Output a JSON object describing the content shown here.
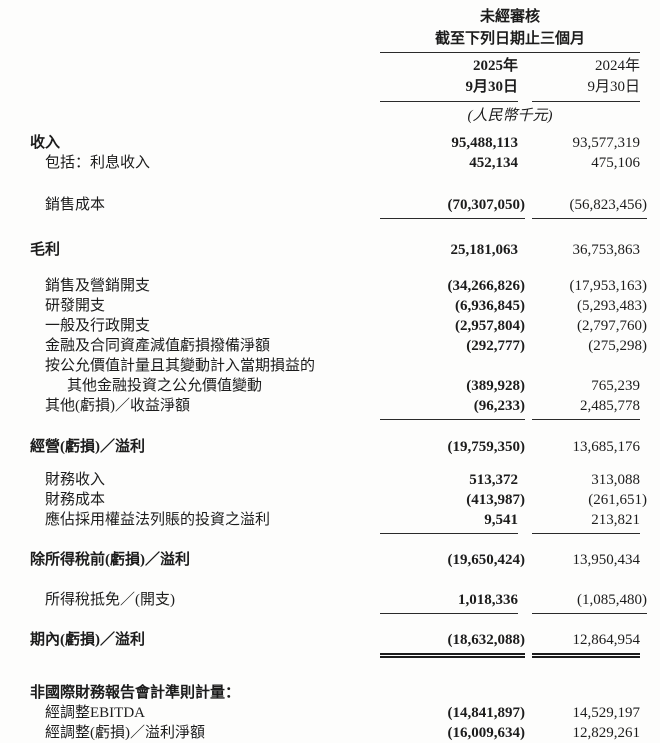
{
  "header": {
    "unaudited": "未經審核",
    "period_title": "截至下列日期止三個月",
    "col_2025": {
      "year": "2025年",
      "date": "9月30日"
    },
    "col_2024": {
      "year": "2024年",
      "date": "9月30日"
    },
    "currency_note": "(人民幣千元)"
  },
  "columns": [
    "2025年9月30日",
    "2024年9月30日"
  ],
  "rows": [
    {
      "label": "收入",
      "v2025": "95,488,113",
      "v2024": "93,577,319",
      "emphasis": true,
      "indent": 0,
      "rule": "none",
      "spacing": 6
    },
    {
      "label": "包括：利息收入",
      "v2025": "452,134",
      "v2024": "475,106",
      "emphasis": false,
      "indent": 1,
      "rule": "none",
      "spacing": 0
    },
    {
      "label": "銷售成本",
      "v2025": "(70,307,050)",
      "v2024": "(56,823,456)",
      "emphasis": false,
      "indent": 1,
      "rule": "single",
      "spacing": 22
    },
    {
      "label": "毛利",
      "v2025": "25,181,063",
      "v2024": "36,753,863",
      "emphasis": true,
      "indent": 0,
      "rule": "none",
      "spacing": 21
    },
    {
      "label": "銷售及營銷開支",
      "v2025": "(34,266,826)",
      "v2024": "(17,953,163)",
      "emphasis": false,
      "indent": 1,
      "rule": "none",
      "spacing": 16
    },
    {
      "label": "研發開支",
      "v2025": "(6,936,845)",
      "v2024": "(5,293,483)",
      "emphasis": false,
      "indent": 1,
      "rule": "none",
      "spacing": 0
    },
    {
      "label": "一般及行政開支",
      "v2025": "(2,957,804)",
      "v2024": "(2,797,760)",
      "emphasis": false,
      "indent": 1,
      "rule": "none",
      "spacing": 0
    },
    {
      "label": "金融及合同資產減值虧損撥備淨額",
      "v2025": "(292,777)",
      "v2024": "(275,298)",
      "emphasis": false,
      "indent": 1,
      "rule": "none",
      "spacing": 0
    },
    {
      "label": "按公允價值計量且其變動計入當期損益的",
      "v2025": "",
      "v2024": "",
      "emphasis": false,
      "indent": 1,
      "rule": "none",
      "spacing": 0
    },
    {
      "label": "其他金融投資之公允價值變動",
      "v2025": "(389,928)",
      "v2024": "765,239",
      "emphasis": false,
      "indent": 2,
      "rule": "none",
      "spacing": 0
    },
    {
      "label": "其他(虧損)／收益淨額",
      "v2025": "(96,233)",
      "v2024": "2,485,778",
      "emphasis": false,
      "indent": 1,
      "rule": "single",
      "spacing": 0
    },
    {
      "label": "經營(虧損)／溢利",
      "v2025": "(19,759,350)",
      "v2024": "13,685,176",
      "emphasis": true,
      "indent": 0,
      "rule": "none",
      "spacing": 17
    },
    {
      "label": "財務收入",
      "v2025": "513,372",
      "v2024": "313,088",
      "emphasis": false,
      "indent": 1,
      "rule": "none",
      "spacing": 13
    },
    {
      "label": "財務成本",
      "v2025": "(413,987)",
      "v2024": "(261,651)",
      "emphasis": false,
      "indent": 1,
      "rule": "none",
      "spacing": 0
    },
    {
      "label": "應佔採用權益法列賬的投資之溢利",
      "v2025": "9,541",
      "v2024": "213,821",
      "emphasis": false,
      "indent": 1,
      "rule": "single",
      "spacing": 0
    },
    {
      "label": "除所得稅前(虧損)／溢利",
      "v2025": "(19,650,424)",
      "v2024": "13,950,434",
      "emphasis": true,
      "indent": 0,
      "rule": "none",
      "spacing": 16
    },
    {
      "label": "所得稅抵免／(開支)",
      "v2025": "1,018,336",
      "v2024": "(1,085,480)",
      "emphasis": false,
      "indent": 1,
      "rule": "single",
      "spacing": 20
    },
    {
      "label": "期內(虧損)／溢利",
      "v2025": "(18,632,088)",
      "v2024": "12,864,954",
      "emphasis": true,
      "indent": 0,
      "rule": "double",
      "spacing": 16
    },
    {
      "label": "非國際財務報告會計準則計量：",
      "v2025": "",
      "v2024": "",
      "emphasis": true,
      "indent": 0,
      "rule": "none",
      "spacing": 25
    },
    {
      "label": "經調整EBITDA",
      "v2025": "(14,841,897)",
      "v2024": "14,529,197",
      "emphasis": false,
      "indent": 1,
      "rule": "none",
      "spacing": 0
    },
    {
      "label": "經調整(虧損)／溢利淨額",
      "v2025": "(16,009,634)",
      "v2024": "12,829,261",
      "emphasis": false,
      "indent": 1,
      "rule": "none",
      "spacing": 0
    }
  ],
  "colors": {
    "text": "#1c1c1c",
    "rule": "#2a2a2a",
    "background": "#fdfdfc"
  }
}
